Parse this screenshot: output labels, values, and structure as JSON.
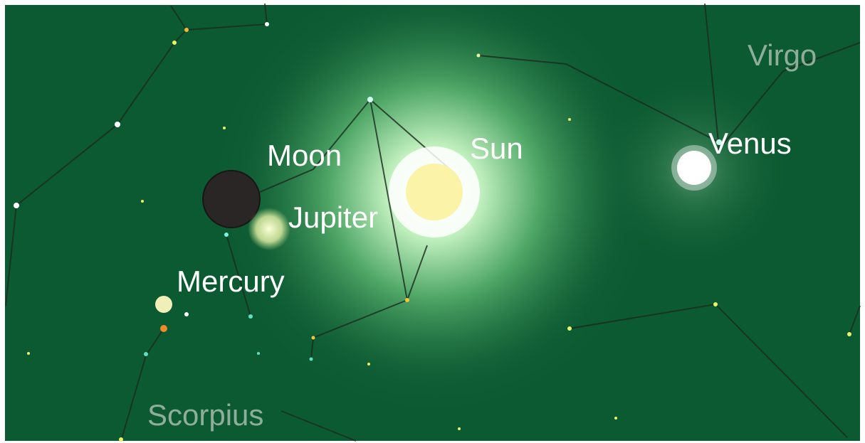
{
  "planets": [
    {
      "label": "Moon"
    },
    {
      "label": "Sun"
    },
    {
      "label": "Jupiter"
    },
    {
      "label": "Mercury"
    },
    {
      "label": "Venus"
    }
  ],
  "constellations": [
    {
      "label": "Virgo"
    },
    {
      "label": "Scorpius"
    }
  ]
}
